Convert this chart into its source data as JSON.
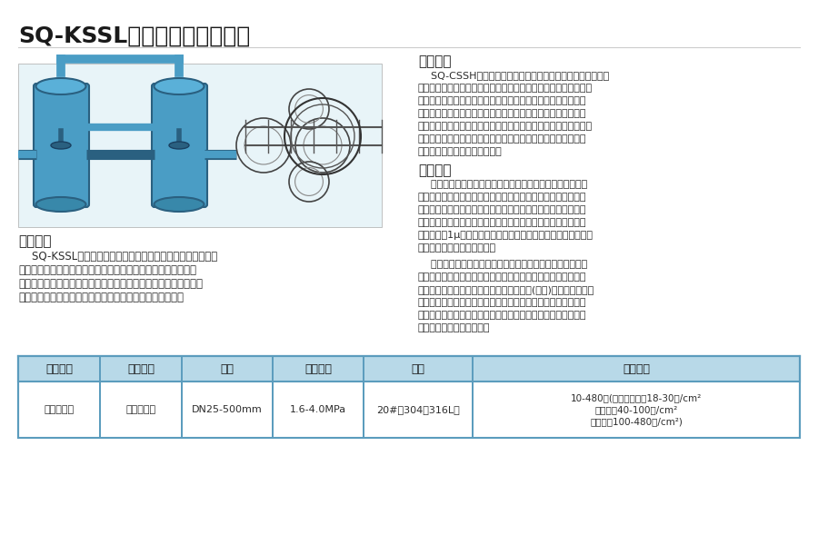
{
  "title": "SQ-KSSL球型双联切换过滤器",
  "section1_title": "工作原理",
  "section1_text": "    SQ-CSSH螺型双联切换过滤器在工作过程中滤芯堵塞到一定\n程度需清洗或更换时，要停止主机工作，这样不仅浪费时间更不能\n满足主机连续工作的需要，双桶过滤器有效地解决了单桶过滤器\n这方面的缺陷，在不停机的情况下可清洗或更换滤芯以保证主机\n正常连续工作。它的工作特点是当一只过滤器滤芯堵塞需更换时，\n不需要停止主机工作，只要转动换向阀，另一只过滤器即可参加\n工作，然后更换已堵塞的滤芯。",
  "section2_title": "结构特点",
  "section2_text1": "    双联切换式过滤器又称并联切换过滤器，采用两个蝶阀，将\n两个单筒过滤器组装在一个机座上，清洗过滤器时不必停车，保\n证其连续工作，是不停车生产线过滤装置首选，本过滤器的过滤\n元件，除采用不锈钢滤芯外，亦可采有优质蜂房式脱脂纤维棉，\n可滤掉粒径1μ以上的颗粒，本过滤器亦可单筒使用，此时只需去\n掉共同机座，其余尺寸不变。",
  "section2_text2": "    双联过滤器内外表面抛光处理，滤筒内装有不锈钢滤网和滤\n网支撑篮；顶部装有放气阀，供过滤时排放滤器内空气作用。上\n盖与滤筒连接采用快开式结构，更方便清洗(更换)滤网，三只可调\n节式支脚可使滤器平稳放置在地面上。连接管路采用活接或卡箍\n连接方式，进出料阀门采用三通球阀启闭，耐压耐温，操作灵活\n方便，无料液泄漏更卫生。",
  "section3_title": "产品概述",
  "section3_text": "    SQ-KSSL球型双联切换过滤器采用两个三通球阀，将两个单\n筒过滤器组装在一个机座上，清洗过滤器时不必停车，保证其连\n续工作。尤其是滤袋侧漏机率小，能准确地保证过滤精度，并能快\n捷地更换滤袋，过滤基本无物料消耗，使得操作成本降低。",
  "table_headers": [
    "安装方式",
    "连接方式",
    "口径",
    "工作压力",
    "材质",
    "过滤精度"
  ],
  "table_row": [
    "直通、高低",
    "法兰、对焊",
    "DN25-500mm",
    "1.6-4.0MPa",
    "20#、304、316L等",
    "10-480目(一般通水网为18-30目/cm²\n通气网为40-100目/cm²\n通油网为100-480目/cm²)"
  ],
  "table_header_bg": "#b8d9e8",
  "table_border_color": "#5b9cbd",
  "bg_color": "#ffffff",
  "text_color": "#2c2c2c",
  "title_color": "#1a1a1a"
}
